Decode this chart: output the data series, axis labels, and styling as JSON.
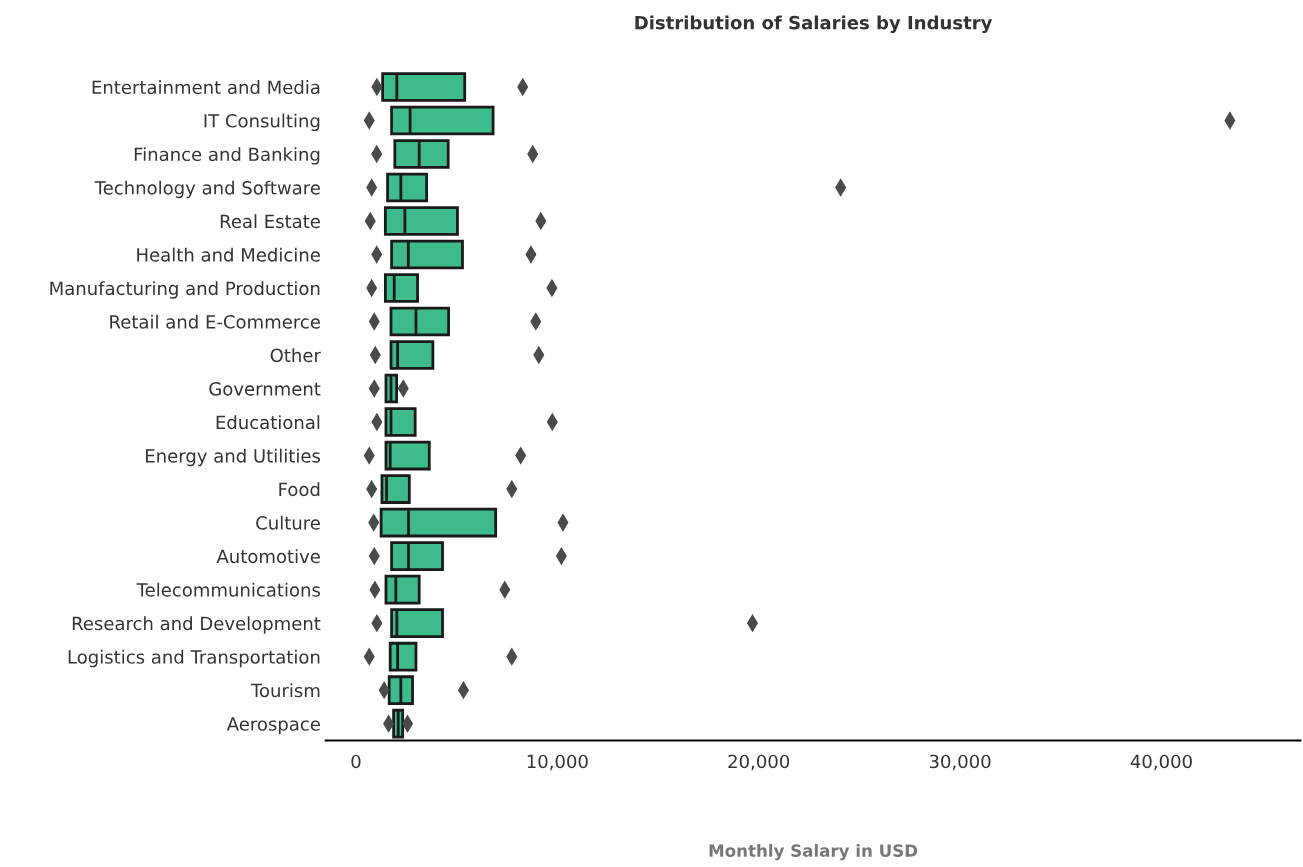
{
  "chart_data": {
    "type": "box",
    "title": "Distribution of Salaries by Industry",
    "xlabel": "Monthly Salary in USD",
    "orientation": "horizontal",
    "categories": [
      "Entertainment and Media",
      "IT Consulting",
      "Finance and Banking",
      "Technology and Software",
      "Real Estate",
      "Health and Medicine",
      "Manufacturing and Production",
      "Retail and E-Commerce",
      "Other",
      "Government",
      "Educational",
      "Energy and Utilities",
      "Food",
      "Culture",
      "Automotive",
      "Telecommunications",
      "Research and Development",
      "Logistics and Transportation",
      "Tourism",
      "Aerospace"
    ],
    "boxes": [
      {
        "low": 1325,
        "q1": 1325,
        "median": 2030,
        "q3": 5400,
        "high": 5400,
        "outliers": [
          1040,
          8280
        ]
      },
      {
        "low": 1770,
        "q1": 1770,
        "median": 2690,
        "q3": 6810,
        "high": 6810,
        "outliers": [
          660,
          43400
        ]
      },
      {
        "low": 1930,
        "q1": 1930,
        "median": 3140,
        "q3": 4580,
        "high": 4580,
        "outliers": [
          1030,
          8780
        ]
      },
      {
        "low": 1570,
        "q1": 1570,
        "median": 2230,
        "q3": 3510,
        "high": 3510,
        "outliers": [
          780,
          24070
        ]
      },
      {
        "low": 1460,
        "q1": 1460,
        "median": 2430,
        "q3": 5040,
        "high": 5040,
        "outliers": [
          710,
          9180
        ]
      },
      {
        "low": 1770,
        "q1": 1770,
        "median": 2600,
        "q3": 5290,
        "high": 5290,
        "outliers": [
          1030,
          8690
        ]
      },
      {
        "low": 1460,
        "q1": 1460,
        "median": 1900,
        "q3": 3060,
        "high": 3060,
        "outliers": [
          780,
          9730
        ]
      },
      {
        "low": 1740,
        "q1": 1740,
        "median": 2980,
        "q3": 4600,
        "high": 4600,
        "outliers": [
          910,
          8930
        ]
      },
      {
        "low": 1740,
        "q1": 1740,
        "median": 2070,
        "q3": 3820,
        "high": 3820,
        "outliers": [
          960,
          9080
        ]
      },
      {
        "low": 1490,
        "q1": 1490,
        "median": 1740,
        "q3": 2020,
        "high": 2020,
        "outliers": [
          910,
          2350
        ]
      },
      {
        "low": 1490,
        "q1": 1490,
        "median": 1740,
        "q3": 2940,
        "high": 2940,
        "outliers": [
          1040,
          9750
        ]
      },
      {
        "low": 1490,
        "q1": 1490,
        "median": 1700,
        "q3": 3640,
        "high": 3640,
        "outliers": [
          660,
          8180
        ]
      },
      {
        "low": 1290,
        "q1": 1290,
        "median": 1520,
        "q3": 2650,
        "high": 2650,
        "outliers": [
          780,
          7740
        ]
      },
      {
        "low": 1250,
        "q1": 1250,
        "median": 2610,
        "q3": 6940,
        "high": 6940,
        "outliers": [
          880,
          10280
        ]
      },
      {
        "low": 1770,
        "q1": 1770,
        "median": 2610,
        "q3": 4300,
        "high": 4300,
        "outliers": [
          910,
          10200
        ]
      },
      {
        "low": 1490,
        "q1": 1490,
        "median": 1980,
        "q3": 3140,
        "high": 3140,
        "outliers": [
          940,
          7390
        ]
      },
      {
        "low": 1770,
        "q1": 1770,
        "median": 2030,
        "q3": 4300,
        "high": 4300,
        "outliers": [
          1040,
          19690
        ]
      },
      {
        "low": 1700,
        "q1": 1700,
        "median": 2070,
        "q3": 2980,
        "high": 2980,
        "outliers": [
          660,
          7740
        ]
      },
      {
        "low": 1650,
        "q1": 1650,
        "median": 2230,
        "q3": 2810,
        "high": 2810,
        "outliers": [
          1400,
          5340
        ]
      },
      {
        "low": 1870,
        "q1": 1870,
        "median": 2100,
        "q3": 2320,
        "high": 2320,
        "outliers": [
          1620,
          2560
        ]
      }
    ],
    "color": "#3dbb8a",
    "marker": "diamond",
    "xlim": [
      -1500,
      46900
    ],
    "xticks": [
      0,
      {
        "value": 10000,
        "label": "10,000"
      },
      {
        "value": 20000,
        "label": "20,000"
      },
      {
        "value": 30000,
        "label": "30,000"
      },
      {
        "value": 40000,
        "label": "40,000"
      }
    ],
    "grid": false,
    "legend": false
  }
}
